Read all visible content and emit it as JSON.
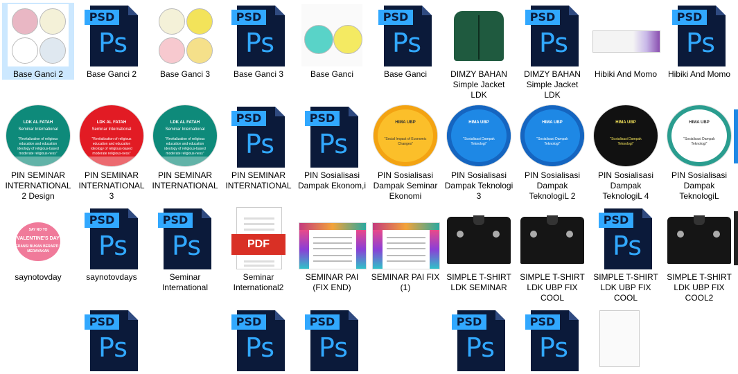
{
  "files": [
    {
      "label": "Base Ganci 2",
      "kind": "keychain-photo",
      "selected": true
    },
    {
      "label": "Base Ganci 2",
      "kind": "psd"
    },
    {
      "label": "Base Ganci 3",
      "kind": "keychain-photo"
    },
    {
      "label": "Base Ganci 3",
      "kind": "psd"
    },
    {
      "label": "Base Ganci",
      "kind": "keychain-photo"
    },
    {
      "label": "Base Ganci",
      "kind": "psd"
    },
    {
      "label": "DIMZY BAHAN Simple Jacket LDK",
      "kind": "jacket"
    },
    {
      "label": "DIMZY BAHAN Simple Jacket LDK",
      "kind": "psd"
    },
    {
      "label": "Hibiki And Momo",
      "kind": "image"
    },
    {
      "label": "Hibiki And Momo",
      "kind": "psd"
    },
    {
      "label": "PIN SEMINAR INTERNATIONAL 2  Design",
      "kind": "pin-teal"
    },
    {
      "label": "PIN SEMINAR INTERNATIONAL 3",
      "kind": "pin-red"
    },
    {
      "label": "PIN SEMINAR INTERNATIONAL",
      "kind": "pin-teal"
    },
    {
      "label": "PIN SEMINAR INTERNATIONAL",
      "kind": "psd"
    },
    {
      "label": "PIN Sosialisasi Dampak Ekonom,i",
      "kind": "psd"
    },
    {
      "label": "PIN Sosialisasi Dampak Seminar Ekonomi",
      "kind": "pin-yellow"
    },
    {
      "label": "PIN Sosialisasi Dampak Teknologi 3",
      "kind": "pin-blue"
    },
    {
      "label": "PIN Sosialisasi Dampak TeknologiL 2",
      "kind": "pin-blue"
    },
    {
      "label": "PIN Sosialisasi Dampak TeknologiL 4",
      "kind": "pin-black"
    },
    {
      "label": "PIN Sosialisasi Dampak TeknologiL",
      "kind": "pin-white"
    },
    {
      "label": "saynotovday",
      "kind": "valentine"
    },
    {
      "label": "saynotovdays",
      "kind": "psd"
    },
    {
      "label": "Seminar International",
      "kind": "psd"
    },
    {
      "label": "Seminar International2",
      "kind": "pdf"
    },
    {
      "label": "SEMINAR PAI (FIX END)",
      "kind": "certificate"
    },
    {
      "label": "SEMINAR PAI FIX (1)",
      "kind": "certificate"
    },
    {
      "label": "SIMPLE T-SHIRT LDK SEMINAR",
      "kind": "shirt"
    },
    {
      "label": "SIMPLE T-SHIRT LDK UBP  FIX COOL",
      "kind": "shirt"
    },
    {
      "label": "SIMPLE T-SHIRT LDK UBP  FIX COOL",
      "kind": "psd"
    },
    {
      "label": "SIMPLE T-SHIRT LDK UBP  FIX COOL2",
      "kind": "shirt"
    }
  ],
  "icon_text": {
    "psd_tab": "PSD",
    "psd_logo": "Ps",
    "pdf_band": "PDF"
  },
  "pin_text": {
    "seminar_title": "LDK AL FATAH",
    "seminar_sub": "Seminar International",
    "seminar_quote": "\"Revitalization of religious education and education ideology of religious-based moderate religious-ness\"",
    "sos_title": "HIMA UBP",
    "sos_theme": "\"Sosialisasi Dampak Teknologi\"",
    "seminar_small": "\"Social Impact of Economic Changes\""
  },
  "valentine_text": {
    "line1": "SAY NO TO",
    "line2": "VALENTINE'S DAY",
    "line3": "TOLERANSI BUKAN BERARTI IKUT MERAYAKAN"
  },
  "colors": {
    "selected_bg": "#cce8ff",
    "psd_dark": "#0b1a3a",
    "psd_blue": "#31a8ff",
    "pdf_red": "#d93025"
  }
}
